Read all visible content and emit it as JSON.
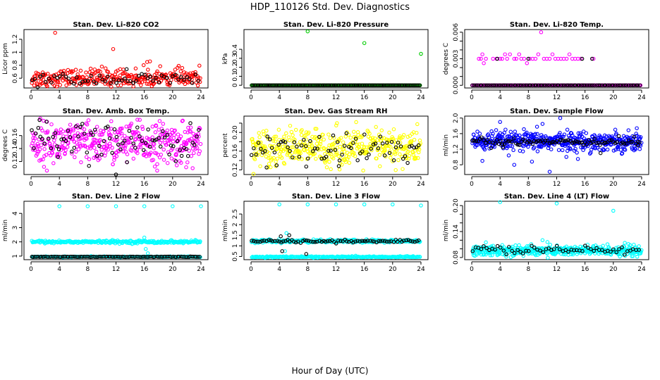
{
  "figure": {
    "title": "HDP_110126  Std. Dev. Diagnostics",
    "xlabel": "Hour of Day (UTC)"
  },
  "chart_data": [
    {
      "type": "scatter",
      "title": "Stan. Dev. Li-820 CO2",
      "ylabel": "Licor ppm",
      "xlim": [
        -1,
        25
      ],
      "ylim": [
        0.45,
        1.35
      ],
      "xticks": [
        0,
        4,
        8,
        12,
        16,
        20,
        24
      ],
      "yticks": [
        0.6,
        0.8,
        1.0,
        1.2
      ],
      "series": [
        {
          "name": "main",
          "color": "#ff0000",
          "count": 300,
          "mean": 0.6,
          "spread": 0.07,
          "outliers": [
            [
              3.4,
              1.3
            ],
            [
              11.6,
              1.05
            ],
            [
              10.0,
              0.78
            ],
            [
              16.4,
              0.85
            ],
            [
              16.8,
              0.86
            ],
            [
              12.6,
              0.74
            ]
          ]
        },
        {
          "name": "overlay",
          "color": "#000000",
          "count": 60,
          "mean": 0.58,
          "spread": 0.05,
          "outliers": [
            [
              13.5,
              0.74
            ]
          ]
        }
      ]
    },
    {
      "type": "scatter",
      "title": "Stan. Dev. Li-820 Pressure",
      "ylabel": "kPa",
      "xlim": [
        -1,
        25
      ],
      "ylim": [
        -0.03,
        0.62
      ],
      "xticks": [
        0,
        4,
        8,
        12,
        16,
        20,
        24
      ],
      "yticks": [
        0.0,
        0.1,
        0.2,
        0.3,
        0.4
      ],
      "series": [
        {
          "name": "main",
          "color": "#00cc00",
          "count": 200,
          "mean": 0.0,
          "spread": 0.0,
          "outliers": [
            [
              8.0,
              0.6
            ],
            [
              16.0,
              0.47
            ],
            [
              24.0,
              0.35
            ]
          ]
        },
        {
          "name": "overlay",
          "color": "#000000",
          "count": 120,
          "mean": 0.0,
          "spread": 0.0,
          "outliers": []
        }
      ]
    },
    {
      "type": "scatter",
      "title": "Stan. Dev. Li-820 Temp.",
      "ylabel": "degrees C",
      "xlim": [
        -1,
        25
      ],
      "ylim": [
        -0.0003,
        0.0063
      ],
      "xticks": [
        0,
        4,
        8,
        12,
        16,
        20,
        24
      ],
      "yticks": [
        0.0,
        0.001,
        0.002,
        0.003,
        0.004,
        0.005,
        0.006
      ],
      "ytick_labels_shown": [
        "0.000",
        "0.003",
        "0.006"
      ],
      "series": [
        {
          "name": "main-zero",
          "color": "#ff00ff",
          "count": 150,
          "mean": 0.0,
          "spread": 0.0,
          "outliers": []
        },
        {
          "name": "main-mid",
          "color": "#ff00ff",
          "points": [
            [
              1.0,
              0.003
            ],
            [
              1.3,
              0.003
            ],
            [
              1.5,
              0.0035
            ],
            [
              1.7,
              0.0025
            ],
            [
              2.0,
              0.003
            ],
            [
              3.0,
              0.003
            ],
            [
              3.5,
              0.003
            ],
            [
              4.0,
              0.003
            ],
            [
              4.3,
              0.003
            ],
            [
              4.7,
              0.0035
            ],
            [
              5.0,
              0.003
            ],
            [
              5.4,
              0.0035
            ],
            [
              6.0,
              0.003
            ],
            [
              6.3,
              0.003
            ],
            [
              6.7,
              0.0035
            ],
            [
              7.0,
              0.003
            ],
            [
              7.4,
              0.003
            ],
            [
              7.8,
              0.0025
            ],
            [
              8.2,
              0.003
            ],
            [
              8.6,
              0.003
            ],
            [
              9.0,
              0.003
            ],
            [
              9.4,
              0.0035
            ],
            [
              9.8,
              0.006
            ],
            [
              10.2,
              0.003
            ],
            [
              10.6,
              0.003
            ],
            [
              11.0,
              0.003
            ],
            [
              11.4,
              0.0035
            ],
            [
              11.8,
              0.003
            ],
            [
              12.2,
              0.003
            ],
            [
              12.6,
              0.003
            ],
            [
              13.0,
              0.003
            ],
            [
              13.4,
              0.003
            ],
            [
              13.8,
              0.0035
            ],
            [
              14.2,
              0.003
            ],
            [
              14.6,
              0.003
            ],
            [
              15.0,
              0.003
            ],
            [
              15.4,
              0.003
            ],
            [
              17.2,
              0.003
            ]
          ]
        },
        {
          "name": "overlay",
          "color": "#000000",
          "count": 90,
          "mean": 0.0,
          "spread": 0.0,
          "outliers": [
            [
              3.6,
              0.003
            ],
            [
              8.0,
              0.003
            ],
            [
              15.6,
              0.003
            ],
            [
              17.0,
              0.003
            ]
          ]
        }
      ]
    },
    {
      "type": "scatter",
      "title": "Stan. Dev. Amb. Box Temp.",
      "ylabel": "degrees C",
      "xlim": [
        -1,
        25
      ],
      "ylim": [
        0.1,
        0.19
      ],
      "xticks": [
        0,
        4,
        8,
        12,
        16,
        20,
        24
      ],
      "yticks": [
        0.12,
        0.14,
        0.16
      ],
      "series": [
        {
          "name": "main",
          "color": "#ff00ff",
          "count": 420,
          "mean": 0.148,
          "spread": 0.016,
          "outliers": []
        },
        {
          "name": "overlay",
          "color": "#000000",
          "count": 80,
          "mean": 0.15,
          "spread": 0.014,
          "outliers": [
            [
              12.0,
              0.1
            ],
            [
              3.8,
              0.127
            ],
            [
              1.2,
              0.184
            ]
          ]
        }
      ]
    },
    {
      "type": "scatter",
      "title": "Stan. Dev. Gas Stream RH",
      "ylabel": "percent",
      "xlim": [
        -1,
        25
      ],
      "ylim": [
        0.11,
        0.235
      ],
      "xticks": [
        0,
        4,
        8,
        12,
        16,
        20,
        24
      ],
      "yticks": [
        0.12,
        0.14,
        0.16,
        0.18,
        0.2,
        0.22
      ],
      "ytick_labels_shown": [
        "0.12",
        "0.16",
        "0.20"
      ],
      "series": [
        {
          "name": "main",
          "color": "#ffff00",
          "count": 420,
          "mean": 0.168,
          "spread": 0.02,
          "outliers": []
        },
        {
          "name": "overlay",
          "color": "#000000",
          "count": 75,
          "mean": 0.165,
          "spread": 0.017,
          "outliers": [
            [
              2.2,
              0.125
            ],
            [
              7.8,
              0.127
            ],
            [
              12.4,
              0.128
            ]
          ]
        }
      ]
    },
    {
      "type": "scatter",
      "title": "Stan. Dev. Sample Flow",
      "ylabel": "ml/min",
      "xlim": [
        -1,
        25
      ],
      "ylim": [
        0.55,
        2.05
      ],
      "xticks": [
        0,
        4,
        8,
        12,
        16,
        20,
        24
      ],
      "yticks": [
        0.8,
        1.2,
        1.6,
        2.0
      ],
      "ytick_labels_shown": [
        "0.8",
        "1.2",
        "1.6",
        "2.0"
      ],
      "series": [
        {
          "name": "main",
          "color": "#0000ff",
          "count": 480,
          "mean": 1.4,
          "spread": 0.12,
          "outliers": [
            [
              11.0,
              0.62
            ],
            [
              12.5,
              2.0
            ],
            [
              1.5,
              0.9
            ],
            [
              6.0,
              0.8
            ],
            [
              8.5,
              0.88
            ],
            [
              15.0,
              0.95
            ],
            [
              4.0,
              1.9
            ],
            [
              10.0,
              1.85
            ]
          ]
        },
        {
          "name": "overlay",
          "color": "#000000",
          "count": 90,
          "mean": 1.4,
          "spread": 0.05,
          "outliers": [
            [
              4.4,
              1.25
            ],
            [
              18.2,
              1.1
            ],
            [
              23.5,
              1.3
            ]
          ]
        }
      ]
    },
    {
      "type": "scatter",
      "title": "Stan. Dev. Line 2 Flow",
      "ylabel": "ml/min",
      "xlim": [
        -1,
        25
      ],
      "ylim": [
        0.75,
        4.85
      ],
      "xticks": [
        0,
        4,
        8,
        12,
        16,
        20,
        24
      ],
      "yticks": [
        1,
        2,
        3,
        4
      ],
      "series": [
        {
          "name": "main-high",
          "color": "#00ffff",
          "count": 260,
          "mean": 2.0,
          "spread": 0.05,
          "outliers": [
            [
              4.0,
              4.5
            ],
            [
              8.0,
              4.5
            ],
            [
              12.0,
              4.5
            ],
            [
              16.0,
              4.5
            ],
            [
              20.0,
              4.5
            ],
            [
              24.0,
              4.5
            ],
            [
              16.2,
              1.5
            ],
            [
              16.5,
              1.2
            ],
            [
              16.0,
              2.3
            ]
          ]
        },
        {
          "name": "main-low",
          "color": "#00ffff",
          "count": 200,
          "mean": 0.95,
          "spread": 0.015,
          "outliers": []
        },
        {
          "name": "overlay",
          "color": "#000000",
          "count": 110,
          "mean": 0.95,
          "spread": 0.01,
          "outliers": []
        }
      ]
    },
    {
      "type": "scatter",
      "title": "Stan. Dev. Line 3 Flow",
      "ylabel": "ml/min",
      "xlim": [
        -1,
        25
      ],
      "ylim": [
        0.35,
        3.1
      ],
      "xticks": [
        0,
        4,
        8,
        12,
        16,
        20,
        24
      ],
      "yticks": [
        0.5,
        1.0,
        1.5,
        2.0,
        2.5
      ],
      "series": [
        {
          "name": "main-high",
          "color": "#00ffff",
          "count": 260,
          "mean": 1.22,
          "spread": 0.04,
          "outliers": [
            [
              4.0,
              2.95
            ],
            [
              8.0,
              2.95
            ],
            [
              12.0,
              2.95
            ],
            [
              16.0,
              2.95
            ],
            [
              20.0,
              2.95
            ],
            [
              24.0,
              2.9
            ],
            [
              5.0,
              1.6
            ],
            [
              4.8,
              0.75
            ]
          ]
        },
        {
          "name": "main-low",
          "color": "#00ffff",
          "count": 220,
          "mean": 0.48,
          "spread": 0.015,
          "outliers": []
        },
        {
          "name": "overlay",
          "color": "#000000",
          "count": 80,
          "mean": 1.22,
          "spread": 0.035,
          "outliers": [
            [
              4.4,
              0.75
            ],
            [
              5.4,
              1.5
            ],
            [
              7.8,
              0.62
            ],
            [
              4.2,
              1.45
            ]
          ]
        }
      ]
    },
    {
      "type": "scatter",
      "title": "Stan. Dev. Line 4 (LT) Flow",
      "ylabel": "ml/min",
      "xlim": [
        -1,
        25
      ],
      "ylim": [
        0.075,
        0.21
      ],
      "xticks": [
        0,
        4,
        8,
        12,
        16,
        20,
        24
      ],
      "yticks": [
        0.08,
        0.1,
        0.12,
        0.14,
        0.16,
        0.18,
        0.2
      ],
      "ytick_labels_shown": [
        "0.08",
        "0.14",
        "0.20"
      ],
      "series": [
        {
          "name": "main",
          "color": "#00ffff",
          "count": 460,
          "mean": 0.096,
          "spread": 0.006,
          "outliers": [
            [
              4.0,
              0.208
            ],
            [
              12.0,
              0.205
            ],
            [
              20.0,
              0.188
            ],
            [
              10.0,
              0.12
            ],
            [
              2.0,
              0.115
            ]
          ]
        },
        {
          "name": "overlay",
          "color": "#000000",
          "count": 60,
          "mean": 0.097,
          "spread": 0.005,
          "outliers": []
        }
      ]
    }
  ]
}
